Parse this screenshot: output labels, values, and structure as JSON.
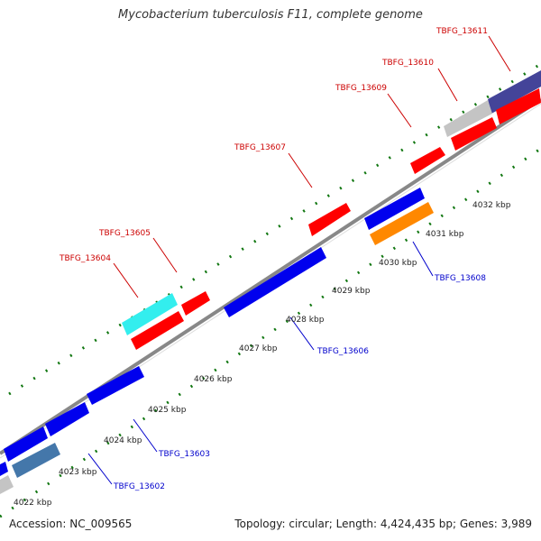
{
  "title": "Mycobacterium tuberculosis F11, complete genome",
  "footer": {
    "accession": "Accession: NC_009565",
    "topology": "Topology: circular; Length: 4,424,435 bp; Genes: 3,989"
  },
  "colors": {
    "forward_gene": "#ff0000",
    "reverse_gene": "#0000ee",
    "backbone": "#888888",
    "tick": "#117711",
    "forward_label": "#cc0000",
    "reverse_label": "#0000cc"
  },
  "kbp_labels": [
    {
      "text": "4022 kbp",
      "kbp": 4022
    },
    {
      "text": "4023 kbp",
      "kbp": 4023
    },
    {
      "text": "4024 kbp",
      "kbp": 4024
    },
    {
      "text": "4025 kbp",
      "kbp": 4025
    },
    {
      "text": "4026 kbp",
      "kbp": 4026
    },
    {
      "text": "4027 kbp",
      "kbp": 4027
    },
    {
      "text": "4028 kbp",
      "kbp": 4028
    },
    {
      "text": "4029 kbp",
      "kbp": 4029
    },
    {
      "text": "4030 kbp",
      "kbp": 4030
    },
    {
      "text": "4031 kbp",
      "kbp": 4031
    },
    {
      "text": "4032 kbp",
      "kbp": 4032
    }
  ],
  "gene_labels": [
    {
      "text": "TBFG_13611",
      "strand": "forward"
    },
    {
      "text": "TBFG_13610",
      "strand": "forward"
    },
    {
      "text": "TBFG_13609",
      "strand": "forward"
    },
    {
      "text": "TBFG_13607",
      "strand": "forward"
    },
    {
      "text": "TBFG_13605",
      "strand": "forward"
    },
    {
      "text": "TBFG_13604",
      "strand": "forward"
    },
    {
      "text": "TBFG_13608",
      "strand": "reverse"
    },
    {
      "text": "TBFG_13606",
      "strand": "reverse"
    },
    {
      "text": "TBFG_13603",
      "strand": "reverse"
    },
    {
      "text": "TBFG_13602",
      "strand": "reverse"
    }
  ]
}
